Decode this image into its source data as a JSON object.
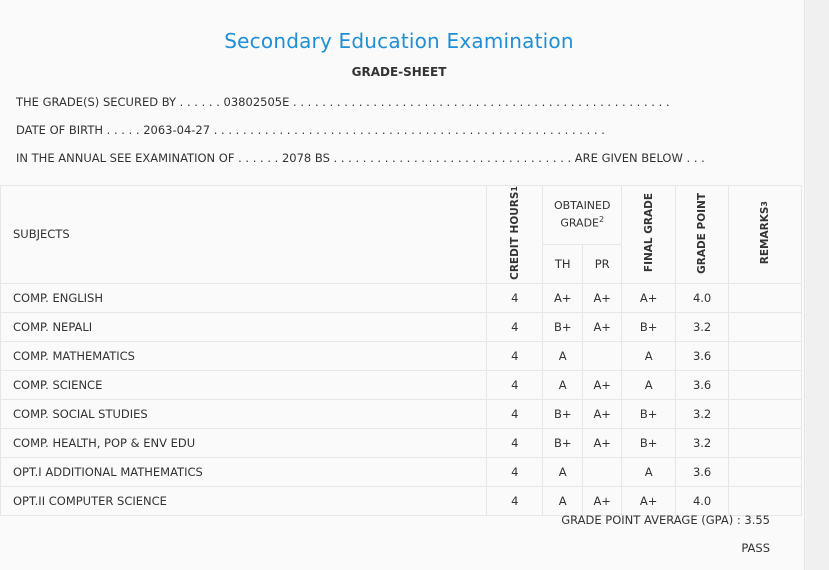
{
  "header": {
    "title": "Secondary Education Examination",
    "subtitle": "GRADE-SHEET"
  },
  "info": {
    "line1_prefix": "THE GRADE(S) SECURED BY . . . . . .",
    "symbol_no": "03802505E",
    "line1_suffix": ". . . . . . . . . . . . . . . . . . . . . . . . . . . . . . . . . . . . . . . . . . . . . . . . . . . .",
    "line2_prefix": "DATE OF BIRTH . . . . .",
    "dob": "2063-04-27",
    "line2_suffix": ". . . . . . . . . . . . . . . . . . . . . . . . . . . . . . . . . . . . . . . . . . . . . . . . . . . . . .",
    "line3_prefix": "IN THE ANNUAL SEE EXAMINATION OF . . . . . .",
    "year": "2078 BS",
    "line3_suffix": ". . . . . . . . . . . . . . . . . . . . . . . . . . . . . . . . . ARE GIVEN BELOW . . ."
  },
  "table": {
    "headers": {
      "subjects": "SUBJECTS",
      "credit_hours": "CREDIT HOURS",
      "credit_sup": "1",
      "obtained_grade": "OBTAINED GRADE",
      "obtained_sup": "2",
      "th": "TH",
      "pr": "PR",
      "final_grade": "FINAL GRADE",
      "grade_point": "GRADE POINT",
      "remarks": "REMARKS",
      "remarks_sup": "3"
    },
    "rows": [
      {
        "subject": "COMP. ENGLISH",
        "credit": "4",
        "th": "A+",
        "pr": "A+",
        "final": "A+",
        "gp": "4.0",
        "remarks": ""
      },
      {
        "subject": "COMP. NEPALI",
        "credit": "4",
        "th": "B+",
        "pr": "A+",
        "final": "B+",
        "gp": "3.2",
        "remarks": ""
      },
      {
        "subject": "COMP. MATHEMATICS",
        "credit": "4",
        "th": "A",
        "pr": "",
        "final": "A",
        "gp": "3.6",
        "remarks": ""
      },
      {
        "subject": "COMP. SCIENCE",
        "credit": "4",
        "th": "A",
        "pr": "A+",
        "final": "A",
        "gp": "3.6",
        "remarks": ""
      },
      {
        "subject": "COMP. SOCIAL STUDIES",
        "credit": "4",
        "th": "B+",
        "pr": "A+",
        "final": "B+",
        "gp": "3.2",
        "remarks": ""
      },
      {
        "subject": "COMP. HEALTH, POP & ENV EDU",
        "credit": "4",
        "th": "B+",
        "pr": "A+",
        "final": "B+",
        "gp": "3.2",
        "remarks": ""
      },
      {
        "subject": "OPT.I ADDITIONAL MATHEMATICS",
        "credit": "4",
        "th": "A",
        "pr": "",
        "final": "A",
        "gp": "3.6",
        "remarks": ""
      },
      {
        "subject": "OPT.II COMPUTER SCIENCE",
        "credit": "4",
        "th": "A",
        "pr": "A+",
        "final": "A+",
        "gp": "4.0",
        "remarks": ""
      }
    ]
  },
  "summary": {
    "gpa_label": "GRADE POINT AVERAGE (GPA) :",
    "gpa": "3.55",
    "result": "PASS"
  }
}
